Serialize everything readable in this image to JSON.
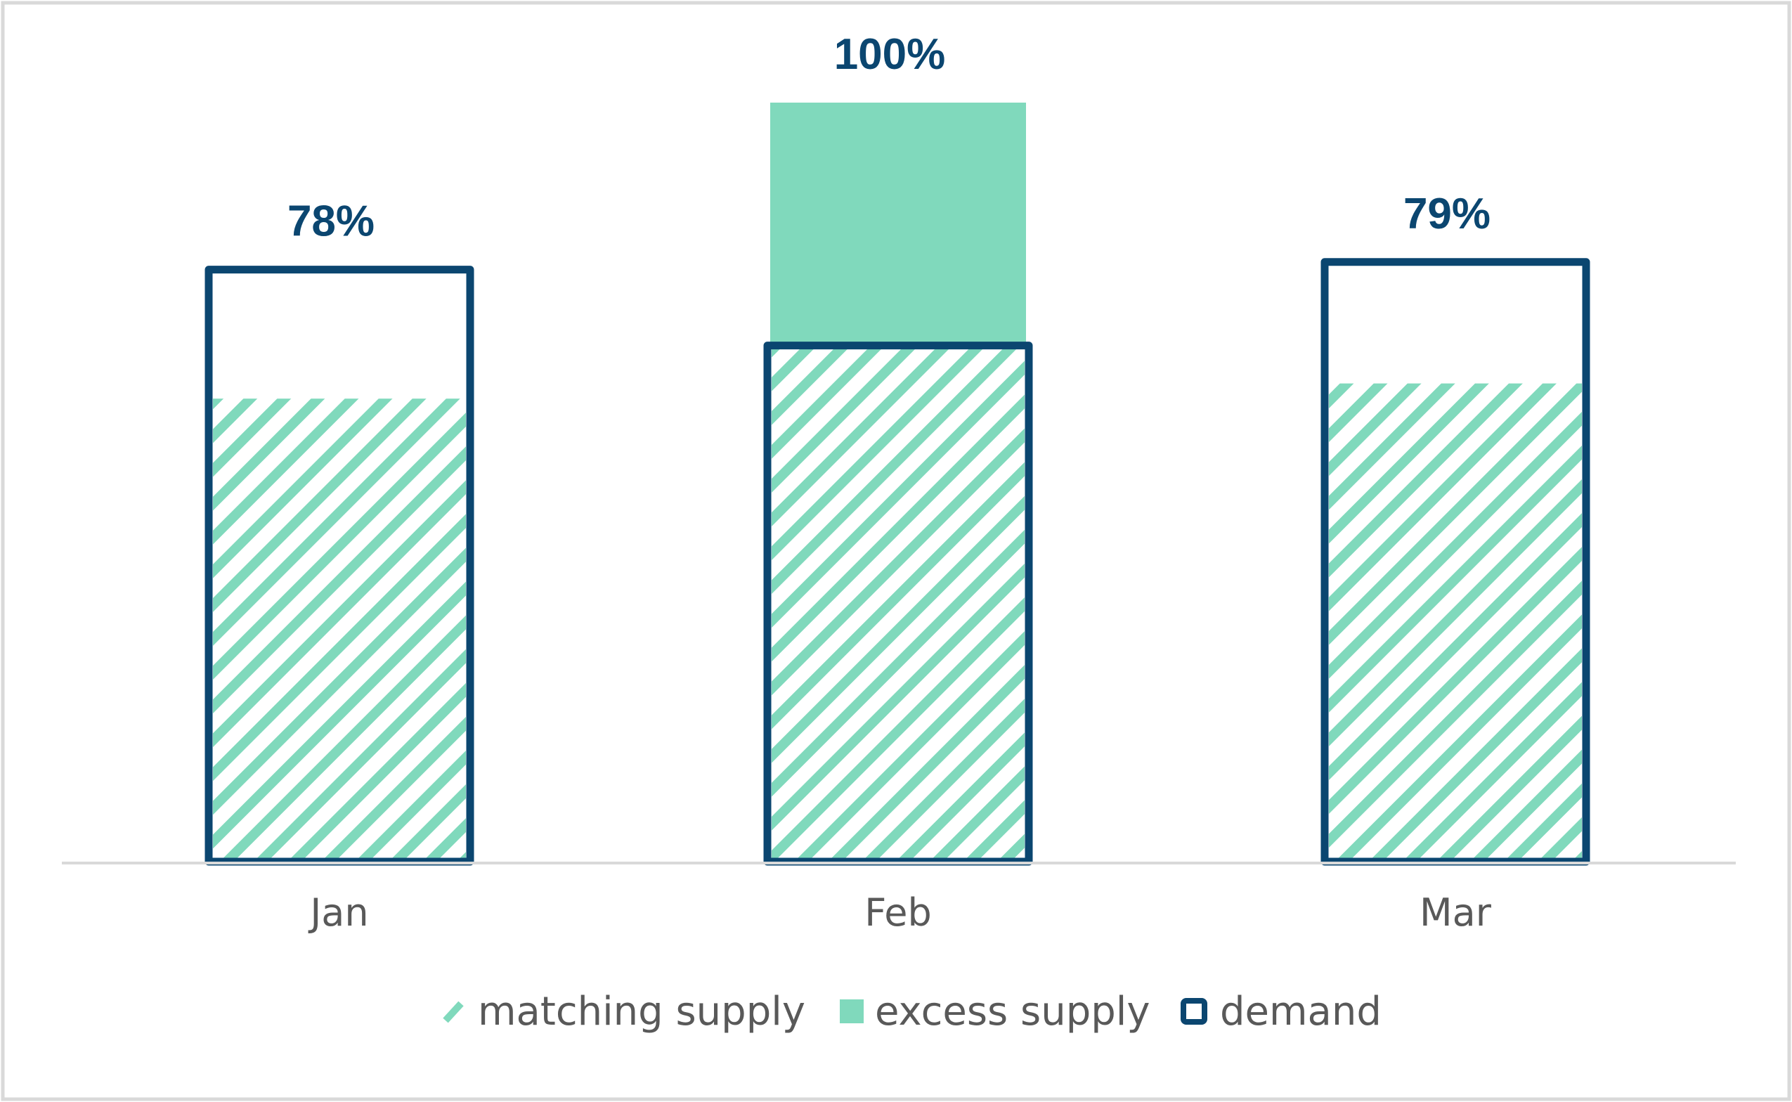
{
  "colors": {
    "demand_outline": "#0b4670",
    "supply_fill": "#80d9bc",
    "hatch_line": "#80d9bc",
    "axis_line": "#d9d9d9",
    "frame_border": "#d9d9d9",
    "tick_text": "#595959",
    "data_label_text": "#0b4670"
  },
  "chart_data": {
    "type": "bar",
    "categories": [
      "Jan",
      "Feb",
      "Mar"
    ],
    "series": [
      {
        "name": "matching supply",
        "values": [
          61,
          68,
          63
        ]
      },
      {
        "name": "excess supply",
        "values": [
          0,
          32,
          0
        ]
      },
      {
        "name": "demand",
        "values": [
          78,
          68,
          79
        ]
      }
    ],
    "data_labels": [
      "78%",
      "100%",
      "79%"
    ],
    "ylim": [
      0,
      100
    ],
    "grid": false,
    "y_axis_visible": false,
    "legend": {
      "position": "bottom",
      "entries": [
        {
          "label": "matching supply",
          "style": "hatched"
        },
        {
          "label": "excess supply",
          "style": "solid"
        },
        {
          "label": "demand",
          "style": "outline"
        }
      ]
    }
  }
}
